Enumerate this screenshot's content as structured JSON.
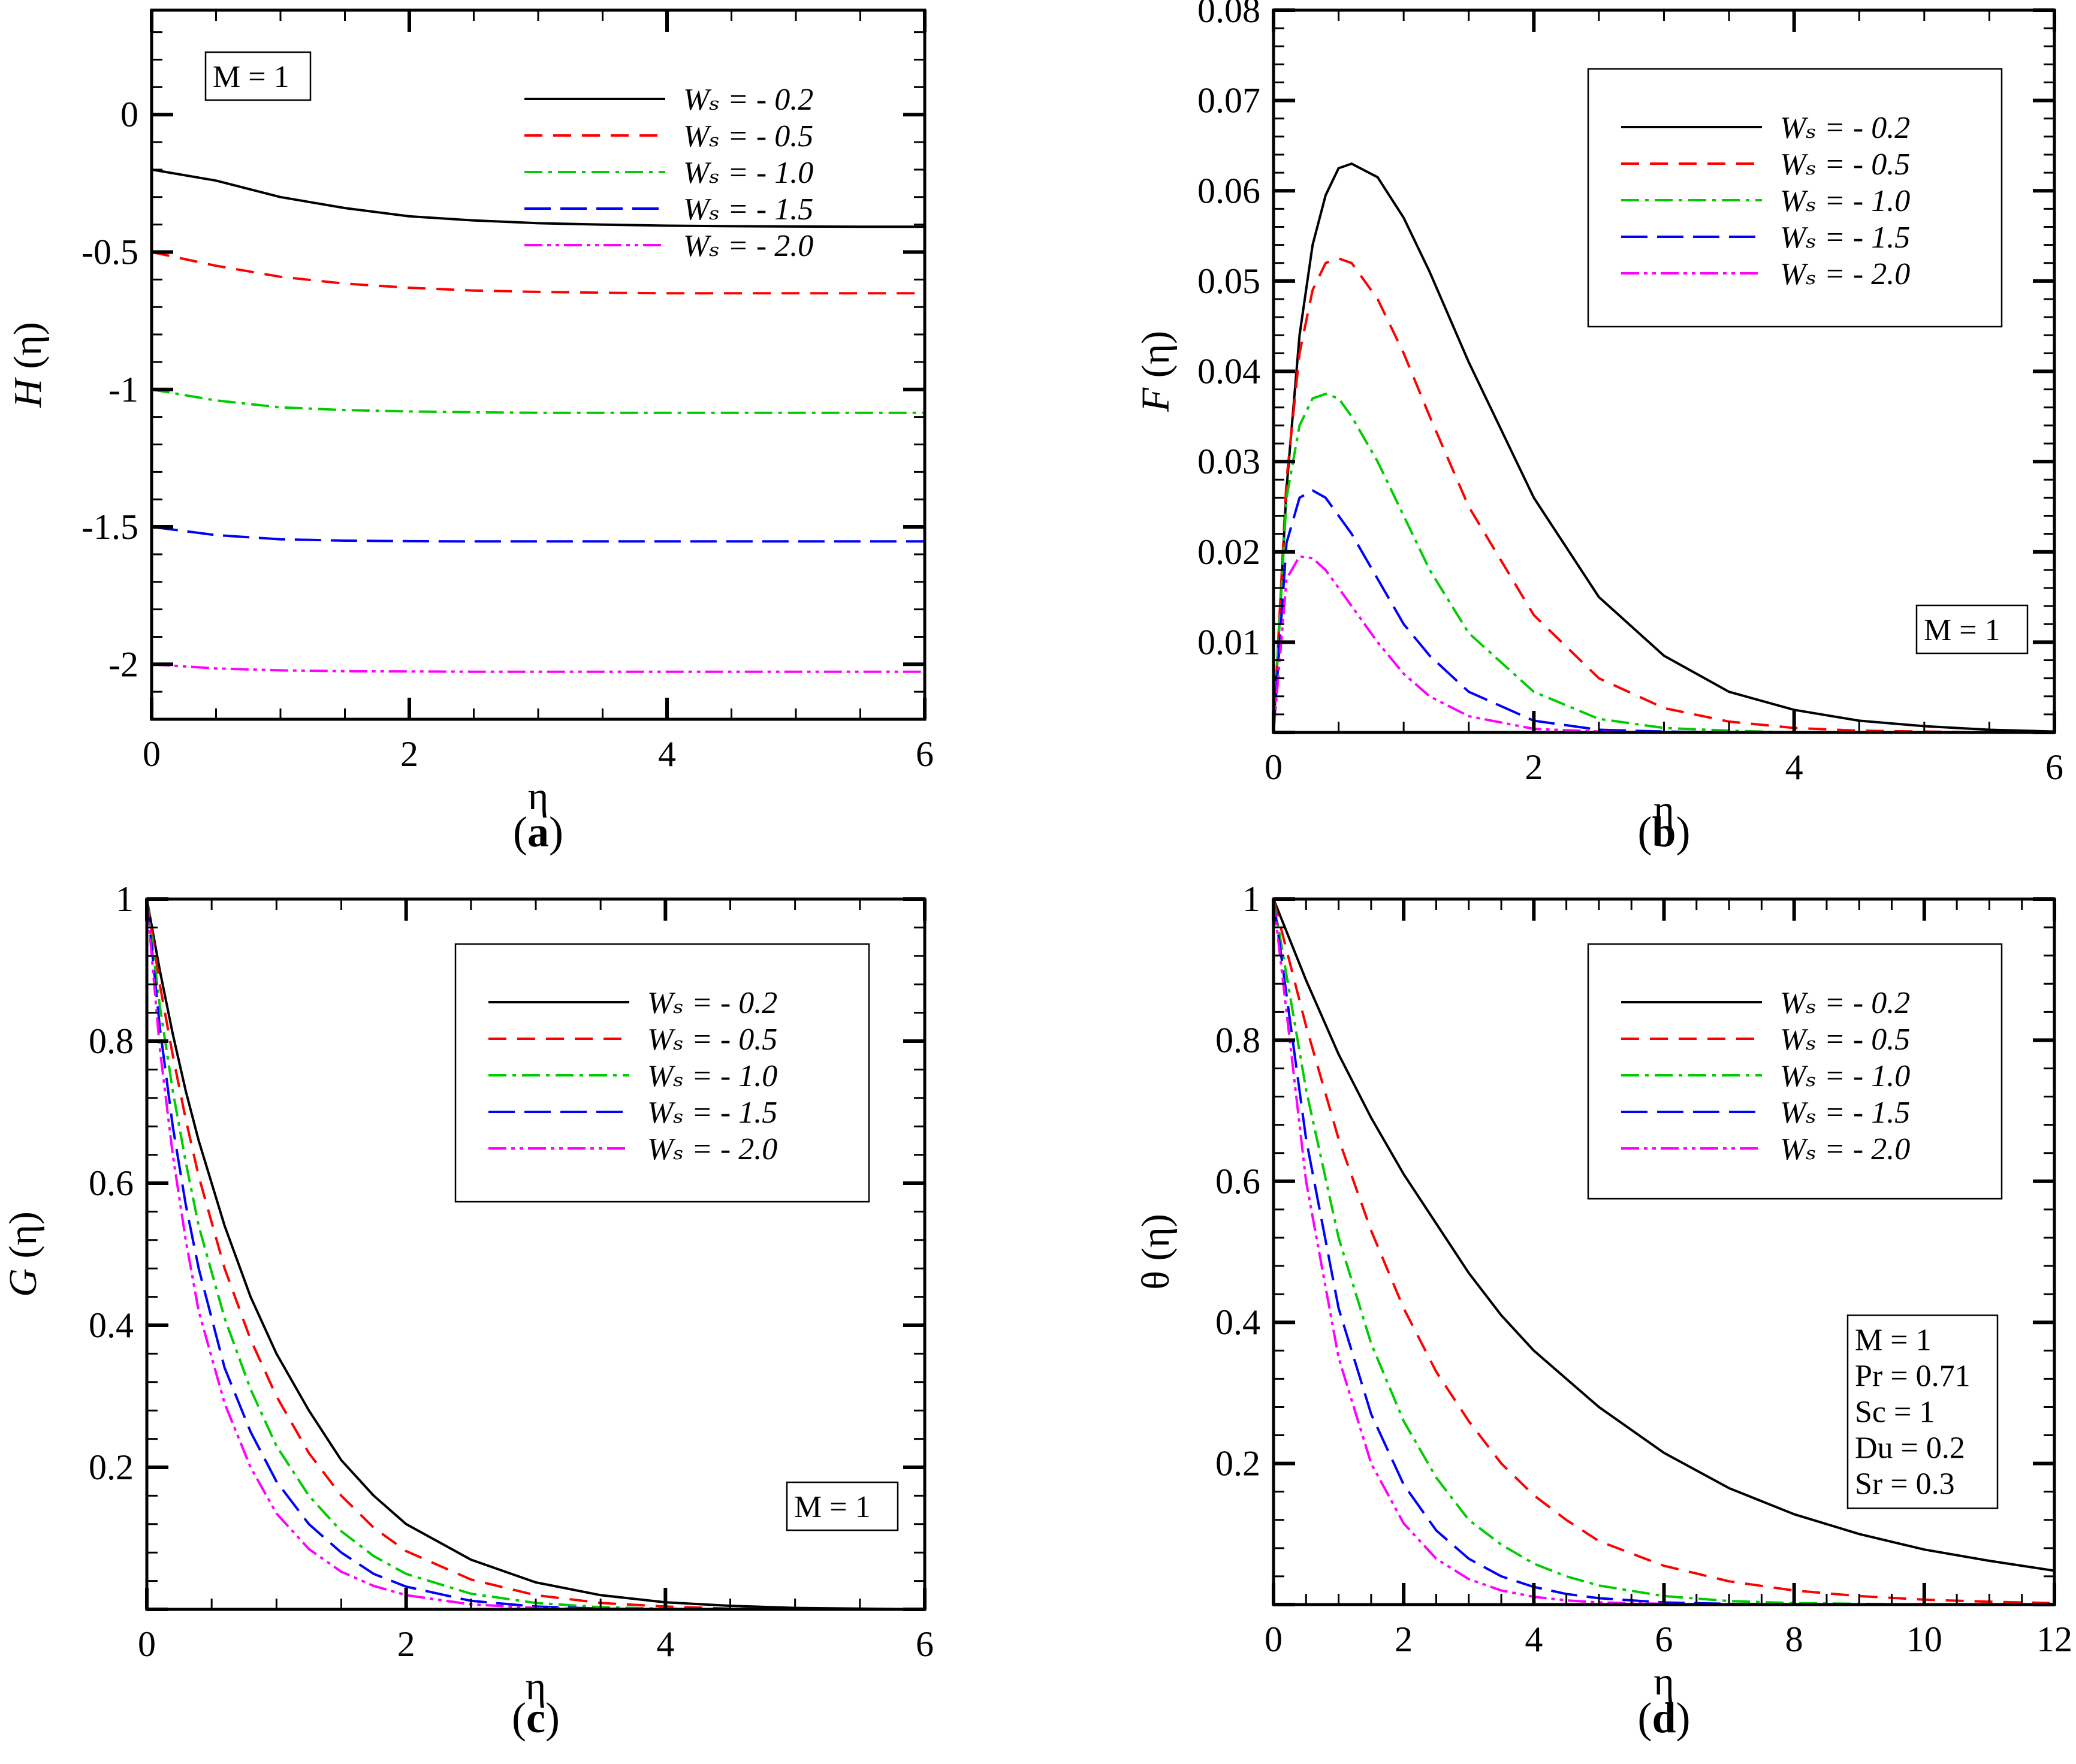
{
  "figure": {
    "series_colors": [
      "#000000",
      "#ff0000",
      "#00cc00",
      "#0000ff",
      "#ff00ff"
    ],
    "series_dash": [
      "",
      "30,18",
      "30,10,6,10",
      "44,16",
      "30,8,6,8,6,8"
    ]
  },
  "chart_data": [
    {
      "id": "a",
      "type": "line",
      "caption": "a",
      "xlabel": "η",
      "ylabel_main": "H",
      "ylabel_arg": " (η)",
      "xlim": [
        0,
        6
      ],
      "ylim": [
        -2.2,
        0.38
      ],
      "xticks": [
        0,
        2,
        4,
        6
      ],
      "xtick_labels": [
        "0",
        "2",
        "4",
        "6"
      ],
      "yticks": [
        0,
        -0.5,
        -1,
        -1.5,
        -2
      ],
      "ytick_labels": [
        "0",
        "-0.5",
        "-1",
        "-1.5",
        "-2"
      ],
      "legend_pos": "top-right",
      "legend_entries": [
        "Wₛ = - 0.2",
        "Wₛ = - 0.5",
        "Wₛ = - 1.0",
        "Wₛ = - 1.5",
        "Wₛ = - 2.0"
      ],
      "params": [
        "M = 1"
      ],
      "params_pos": "top-left",
      "x": [
        0,
        0.5,
        1,
        1.5,
        2,
        2.5,
        3,
        3.5,
        4,
        4.5,
        5,
        5.5,
        6
      ],
      "series": [
        {
          "name": "Ws = -0.2",
          "values": [
            -0.2,
            -0.24,
            -0.3,
            -0.34,
            -0.37,
            -0.385,
            -0.395,
            -0.4,
            -0.404,
            -0.406,
            -0.407,
            -0.408,
            -0.408
          ]
        },
        {
          "name": "Ws = -0.5",
          "values": [
            -0.5,
            -0.55,
            -0.59,
            -0.615,
            -0.63,
            -0.64,
            -0.645,
            -0.648,
            -0.65,
            -0.65,
            -0.65,
            -0.65,
            -0.65
          ]
        },
        {
          "name": "Ws = -1.0",
          "values": [
            -1.0,
            -1.04,
            -1.065,
            -1.075,
            -1.08,
            -1.083,
            -1.085,
            -1.085,
            -1.085,
            -1.085,
            -1.085,
            -1.085,
            -1.085
          ]
        },
        {
          "name": "Ws = -1.5",
          "values": [
            -1.5,
            -1.53,
            -1.545,
            -1.55,
            -1.552,
            -1.553,
            -1.553,
            -1.553,
            -1.553,
            -1.553,
            -1.553,
            -1.553,
            -1.553
          ]
        },
        {
          "name": "Ws = -2.0",
          "values": [
            -2.0,
            -2.015,
            -2.022,
            -2.025,
            -2.026,
            -2.027,
            -2.027,
            -2.027,
            -2.027,
            -2.027,
            -2.027,
            -2.027,
            -2.027
          ]
        }
      ]
    },
    {
      "id": "b",
      "type": "line",
      "caption": "b",
      "xlabel": "η",
      "ylabel_main": "F",
      "ylabel_arg": " (η)",
      "xlim": [
        0,
        6
      ],
      "ylim": [
        0,
        0.08
      ],
      "xticks": [
        0,
        2,
        4,
        6
      ],
      "xtick_labels": [
        "0",
        "2",
        "4",
        "6"
      ],
      "yticks": [
        0.01,
        0.02,
        0.03,
        0.04,
        0.05,
        0.06,
        0.07,
        0.08
      ],
      "ytick_labels": [
        "0.01",
        "0.02",
        "0.03",
        "0.04",
        "0.05",
        "0.06",
        "0.07",
        "0.08"
      ],
      "legend_pos": "top-right",
      "legend_entries": [
        "Wₛ = - 0.2",
        "Wₛ = - 0.5",
        "Wₛ = - 1.0",
        "Wₛ = - 1.5",
        "Wₛ = - 2.0"
      ],
      "params": [
        "M = 1"
      ],
      "params_pos": "bottom-right",
      "x": [
        0,
        0.1,
        0.2,
        0.3,
        0.4,
        0.5,
        0.6,
        0.8,
        1.0,
        1.2,
        1.5,
        2.0,
        2.5,
        3.0,
        3.5,
        4.0,
        4.5,
        5.0,
        5.5,
        6.0
      ],
      "series": [
        {
          "name": "Ws = -0.2",
          "values": [
            0,
            0.027,
            0.044,
            0.054,
            0.0595,
            0.0625,
            0.063,
            0.0615,
            0.057,
            0.051,
            0.041,
            0.026,
            0.015,
            0.0085,
            0.0045,
            0.0025,
            0.0013,
            0.0007,
            0.0003,
            0.0001
          ]
        },
        {
          "name": "Ws = -0.5",
          "values": [
            0,
            0.028,
            0.042,
            0.049,
            0.052,
            0.0525,
            0.052,
            0.048,
            0.042,
            0.035,
            0.025,
            0.013,
            0.006,
            0.0027,
            0.0012,
            0.0005,
            0.0002,
            0.0001,
            0,
            0
          ]
        },
        {
          "name": "Ws = -1.0",
          "values": [
            0,
            0.026,
            0.034,
            0.037,
            0.0375,
            0.037,
            0.035,
            0.03,
            0.024,
            0.018,
            0.011,
            0.0045,
            0.0015,
            0.0005,
            0.0002,
            0,
            0,
            0,
            0,
            0
          ]
        },
        {
          "name": "Ws = -1.5",
          "values": [
            0,
            0.021,
            0.026,
            0.0268,
            0.026,
            0.024,
            0.022,
            0.017,
            0.012,
            0.0085,
            0.0045,
            0.0013,
            0.0003,
            0.0001,
            0,
            0,
            0,
            0,
            0,
            0
          ]
        },
        {
          "name": "Ws = -2.0",
          "values": [
            0,
            0.017,
            0.0195,
            0.0193,
            0.018,
            0.016,
            0.014,
            0.01,
            0.0065,
            0.004,
            0.0018,
            0.0004,
            0.0001,
            0,
            0,
            0,
            0,
            0,
            0,
            0
          ]
        }
      ]
    },
    {
      "id": "c",
      "type": "line",
      "caption": "c",
      "xlabel": "η",
      "ylabel_main": "G",
      "ylabel_arg": " (η)",
      "xlim": [
        0,
        6
      ],
      "ylim": [
        0,
        1
      ],
      "xticks": [
        0,
        2,
        4,
        6
      ],
      "xtick_labels": [
        "0",
        "2",
        "4",
        "6"
      ],
      "yticks": [
        0.2,
        0.4,
        0.6,
        0.8,
        1.0
      ],
      "ytick_labels": [
        "0.2",
        "0.4",
        "0.6",
        "0.8",
        "1"
      ],
      "legend_pos": "top-right",
      "legend_entries": [
        "Wₛ = - 0.2",
        "Wₛ = - 0.5",
        "Wₛ = - 1.0",
        "Wₛ = - 1.5",
        "Wₛ = - 2.0"
      ],
      "params": [
        "M = 1"
      ],
      "params_pos": "bottom-right",
      "x": [
        0,
        0.1,
        0.2,
        0.3,
        0.4,
        0.6,
        0.8,
        1.0,
        1.25,
        1.5,
        1.75,
        2.0,
        2.5,
        3.0,
        3.5,
        4.0,
        4.5,
        5.0,
        6.0
      ],
      "series": [
        {
          "name": "Ws = -0.2",
          "values": [
            1.0,
            0.9,
            0.81,
            0.73,
            0.66,
            0.54,
            0.44,
            0.36,
            0.28,
            0.21,
            0.16,
            0.12,
            0.07,
            0.038,
            0.02,
            0.01,
            0.005,
            0.002,
            0
          ]
        },
        {
          "name": "Ws = -0.5",
          "values": [
            1.0,
            0.88,
            0.78,
            0.69,
            0.61,
            0.48,
            0.38,
            0.3,
            0.22,
            0.16,
            0.115,
            0.082,
            0.042,
            0.02,
            0.009,
            0.004,
            0.001,
            0,
            0
          ]
        },
        {
          "name": "Ws = -1.0",
          "values": [
            1.0,
            0.85,
            0.73,
            0.63,
            0.54,
            0.41,
            0.31,
            0.23,
            0.16,
            0.11,
            0.075,
            0.05,
            0.022,
            0.009,
            0.003,
            0.001,
            0,
            0,
            0
          ]
        },
        {
          "name": "Ws = -1.5",
          "values": [
            1.0,
            0.82,
            0.68,
            0.57,
            0.48,
            0.34,
            0.25,
            0.18,
            0.12,
            0.08,
            0.05,
            0.032,
            0.012,
            0.004,
            0.001,
            0,
            0,
            0,
            0
          ]
        },
        {
          "name": "Ws = -2.0",
          "values": [
            1.0,
            0.79,
            0.64,
            0.52,
            0.42,
            0.29,
            0.2,
            0.135,
            0.085,
            0.053,
            0.033,
            0.02,
            0.007,
            0.002,
            0,
            0,
            0,
            0,
            0
          ]
        }
      ]
    },
    {
      "id": "d",
      "type": "line",
      "caption": "d",
      "xlabel": "η",
      "ylabel_main": "θ",
      "ylabel_arg": " (η)",
      "xlim": [
        0,
        12
      ],
      "ylim": [
        0,
        1
      ],
      "xticks": [
        0,
        2,
        4,
        6,
        8,
        10,
        12
      ],
      "xtick_labels": [
        "0",
        "2",
        "4",
        "6",
        "8",
        "10",
        "12"
      ],
      "yticks": [
        0.2,
        0.4,
        0.6,
        0.8,
        1.0
      ],
      "ytick_labels": [
        "0.2",
        "0.4",
        "0.6",
        "0.8",
        "1"
      ],
      "legend_pos": "top-right",
      "legend_entries": [
        "Wₛ = - 0.2",
        "Wₛ = - 0.5",
        "Wₛ = - 1.0",
        "Wₛ = - 1.5",
        "Wₛ = - 2.0"
      ],
      "params": [
        "M = 1",
        "Pr = 0.71",
        "Sc = 1",
        "Du = 0.2",
        "Sr = 0.3"
      ],
      "params_pos": "right",
      "x": [
        0,
        0.5,
        1,
        1.5,
        2,
        2.5,
        3,
        3.5,
        4,
        4.5,
        5,
        6,
        7,
        8,
        9,
        10,
        11,
        12
      ],
      "series": [
        {
          "name": "Ws = -0.2",
          "values": [
            1.0,
            0.885,
            0.78,
            0.69,
            0.61,
            0.54,
            0.47,
            0.41,
            0.36,
            0.32,
            0.28,
            0.215,
            0.165,
            0.128,
            0.1,
            0.078,
            0.062,
            0.048
          ]
        },
        {
          "name": "Ws = -0.5",
          "values": [
            1.0,
            0.82,
            0.66,
            0.53,
            0.42,
            0.33,
            0.26,
            0.2,
            0.155,
            0.12,
            0.09,
            0.055,
            0.033,
            0.02,
            0.012,
            0.007,
            0.004,
            0.002
          ]
        },
        {
          "name": "Ws = -1.0",
          "values": [
            1.0,
            0.73,
            0.52,
            0.37,
            0.26,
            0.18,
            0.12,
            0.085,
            0.058,
            0.04,
            0.027,
            0.012,
            0.005,
            0.002,
            0.001,
            0,
            0,
            0
          ]
        },
        {
          "name": "Ws = -1.5",
          "values": [
            1.0,
            0.66,
            0.42,
            0.27,
            0.17,
            0.105,
            0.065,
            0.04,
            0.025,
            0.015,
            0.009,
            0.003,
            0.001,
            0,
            0,
            0,
            0,
            0
          ]
        },
        {
          "name": "Ws = -2.0",
          "values": [
            1.0,
            0.6,
            0.35,
            0.2,
            0.115,
            0.065,
            0.036,
            0.02,
            0.011,
            0.006,
            0.003,
            0.001,
            0,
            0,
            0,
            0,
            0,
            0
          ]
        }
      ]
    }
  ]
}
